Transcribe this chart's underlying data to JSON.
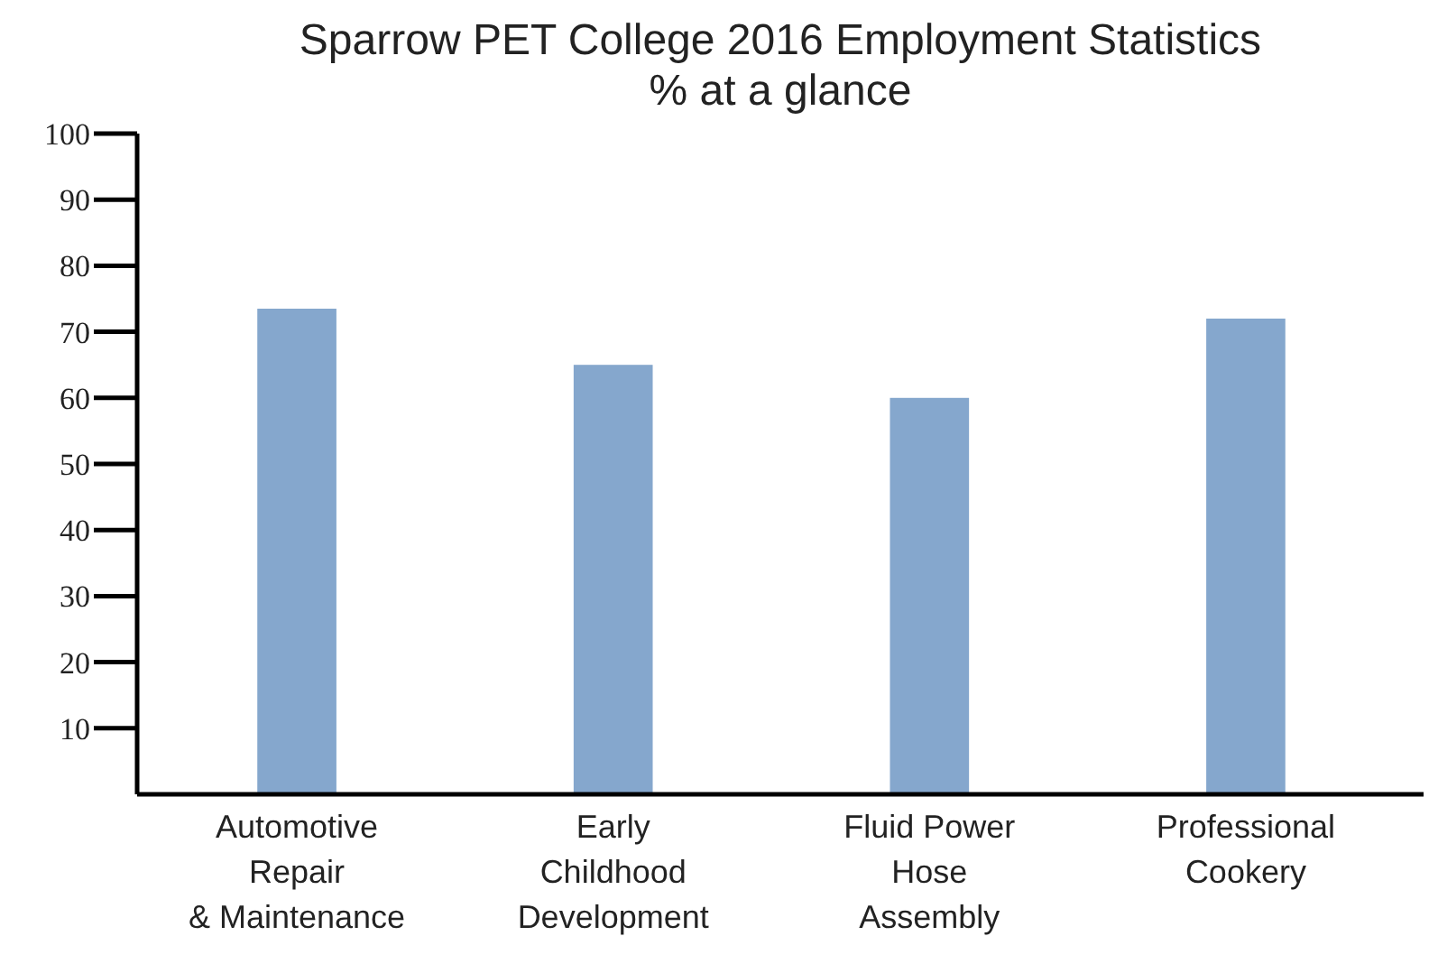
{
  "chart_data": {
    "type": "bar",
    "title": "Sparrow PET College 2016 Employment Statistics\n% at a glance",
    "categories": [
      "Automotive\nRepair\n& Maintenance",
      "Early\nChildhood\nDevelopment",
      "Fluid Power\nHose\nAssembly",
      "Professional\nCookery"
    ],
    "values": [
      73.5,
      65,
      60,
      72
    ],
    "color": "#85a7cd",
    "ylim": [
      0,
      100
    ],
    "yticks": [
      10,
      20,
      30,
      40,
      50,
      60,
      70,
      80,
      90,
      100
    ],
    "grid": false
  }
}
